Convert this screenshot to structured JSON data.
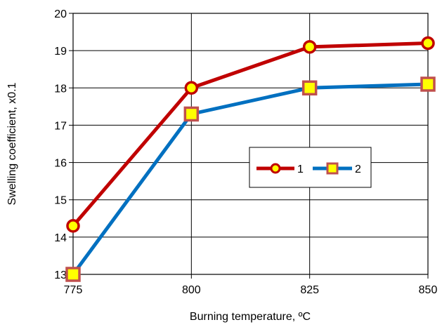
{
  "chart_data": {
    "type": "line",
    "title": "",
    "xlabel": "Burning temperature, ºC",
    "ylabel": "Swelling coefficient, x0.1",
    "x": [
      775,
      800,
      825,
      850
    ],
    "xlim": [
      775,
      850
    ],
    "ylim": [
      13,
      20
    ],
    "x_ticks": [
      "775",
      "800",
      "825",
      "850"
    ],
    "y_ticks": [
      "13",
      "14",
      "15",
      "16",
      "17",
      "18",
      "19",
      "20"
    ],
    "grid": true,
    "legend_position": "center-right",
    "series": [
      {
        "name": "1",
        "values": [
          14.3,
          18.0,
          19.1,
          19.2
        ],
        "color": "#c00000",
        "marker": "circle",
        "marker_fill": "#ffff00"
      },
      {
        "name": "2",
        "values": [
          13.0,
          17.3,
          18.0,
          18.1
        ],
        "color": "#0070c0",
        "marker": "square",
        "marker_fill": "#ffff00",
        "marker_edge": "#c0504d"
      }
    ]
  }
}
